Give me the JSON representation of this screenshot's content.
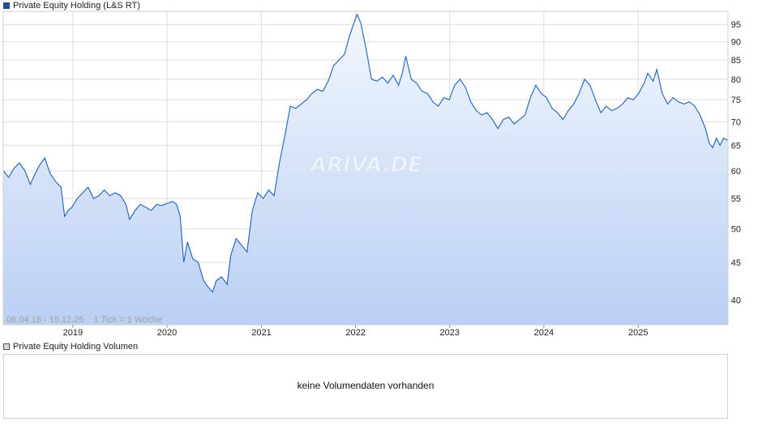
{
  "legend": {
    "price_label": "Private Equity Holding (L&S RT)",
    "volume_label": "Private Equity Holding Volumen"
  },
  "info_text": "06.04.18 - 15.12.25    1 Tick = 1 Woche",
  "watermark": "ARIVA.DE",
  "volume": {
    "message": "keine Volumendaten vorhanden"
  },
  "colors": {
    "line": "#1f5fbf",
    "fill_top": "#f3f7fd",
    "fill_bottom": "#b9d0f4",
    "grid": "#dddddd"
  },
  "chart_data": {
    "type": "area",
    "scale": "log",
    "ylim": [
      37,
      99
    ],
    "xlim": [
      "2018-04-06",
      "2025-12-15"
    ],
    "y_ticks": [
      40,
      45,
      50,
      55,
      60,
      65,
      70,
      75,
      80,
      85,
      90,
      95
    ],
    "x_ticks": [
      {
        "label": "2019",
        "date": "2019-01-01"
      },
      {
        "label": "2020",
        "date": "2020-01-01"
      },
      {
        "label": "2021",
        "date": "2021-01-01"
      },
      {
        "label": "2022",
        "date": "2022-01-01"
      },
      {
        "label": "2023",
        "date": "2023-01-01"
      },
      {
        "label": "2024",
        "date": "2024-01-01"
      },
      {
        "label": "2025",
        "date": "2025-01-01"
      }
    ],
    "grid": true,
    "series": [
      {
        "name": "Private Equity Holding (L&S RT)",
        "points": [
          [
            "2018-04-06",
            60.0
          ],
          [
            "2018-04-27",
            58.8
          ],
          [
            "2018-05-18",
            60.5
          ],
          [
            "2018-06-08",
            61.5
          ],
          [
            "2018-06-29",
            60.0
          ],
          [
            "2018-07-20",
            57.5
          ],
          [
            "2018-08-03",
            59.0
          ],
          [
            "2018-08-24",
            61.0
          ],
          [
            "2018-09-14",
            62.5
          ],
          [
            "2018-10-05",
            59.5
          ],
          [
            "2018-10-26",
            58.0
          ],
          [
            "2018-11-16",
            57.0
          ],
          [
            "2018-11-30",
            52.0
          ],
          [
            "2018-12-14",
            53.0
          ],
          [
            "2018-12-28",
            53.5
          ],
          [
            "2019-01-18",
            55.0
          ],
          [
            "2019-02-08",
            56.0
          ],
          [
            "2019-03-01",
            57.0
          ],
          [
            "2019-03-22",
            55.0
          ],
          [
            "2019-04-12",
            55.5
          ],
          [
            "2019-05-03",
            56.5
          ],
          [
            "2019-05-24",
            55.5
          ],
          [
            "2019-06-14",
            56.0
          ],
          [
            "2019-07-05",
            55.5
          ],
          [
            "2019-07-26",
            54.0
          ],
          [
            "2019-08-09",
            51.5
          ],
          [
            "2019-08-30",
            53.0
          ],
          [
            "2019-09-20",
            54.0
          ],
          [
            "2019-10-11",
            53.5
          ],
          [
            "2019-11-01",
            53.0
          ],
          [
            "2019-11-22",
            54.0
          ],
          [
            "2019-12-13",
            53.8
          ],
          [
            "2020-01-03",
            54.2
          ],
          [
            "2020-01-24",
            54.5
          ],
          [
            "2020-02-07",
            54.0
          ],
          [
            "2020-02-21",
            52.0
          ],
          [
            "2020-03-06",
            45.0
          ],
          [
            "2020-03-20",
            48.0
          ],
          [
            "2020-04-10",
            45.5
          ],
          [
            "2020-05-01",
            45.0
          ],
          [
            "2020-05-22",
            42.5
          ],
          [
            "2020-06-12",
            41.5
          ],
          [
            "2020-06-26",
            41.0
          ],
          [
            "2020-07-10",
            42.5
          ],
          [
            "2020-07-31",
            43.0
          ],
          [
            "2020-08-21",
            42.0
          ],
          [
            "2020-09-04",
            46.0
          ],
          [
            "2020-09-25",
            48.5
          ],
          [
            "2020-10-16",
            47.5
          ],
          [
            "2020-11-06",
            46.5
          ],
          [
            "2020-11-27",
            53.0
          ],
          [
            "2020-12-18",
            56.0
          ],
          [
            "2021-01-08",
            55.0
          ],
          [
            "2021-01-29",
            56.5
          ],
          [
            "2021-02-19",
            55.5
          ],
          [
            "2021-03-12",
            61.5
          ],
          [
            "2021-04-02",
            67.0
          ],
          [
            "2021-04-23",
            73.5
          ],
          [
            "2021-05-14",
            73.0
          ],
          [
            "2021-06-04",
            74.0
          ],
          [
            "2021-06-25",
            75.0
          ],
          [
            "2021-07-16",
            76.5
          ],
          [
            "2021-08-06",
            77.5
          ],
          [
            "2021-08-27",
            77.0
          ],
          [
            "2021-09-17",
            79.5
          ],
          [
            "2021-10-08",
            83.5
          ],
          [
            "2021-10-29",
            85.0
          ],
          [
            "2021-11-19",
            86.5
          ],
          [
            "2021-12-10",
            92.0
          ],
          [
            "2021-12-24",
            95.0
          ],
          [
            "2022-01-07",
            98.0
          ],
          [
            "2022-01-21",
            95.5
          ],
          [
            "2022-02-11",
            88.0
          ],
          [
            "2022-03-04",
            80.0
          ],
          [
            "2022-03-25",
            79.5
          ],
          [
            "2022-04-15",
            80.5
          ],
          [
            "2022-05-06",
            79.0
          ],
          [
            "2022-05-27",
            81.0
          ],
          [
            "2022-06-17",
            78.5
          ],
          [
            "2022-07-01",
            81.5
          ],
          [
            "2022-07-15",
            86.0
          ],
          [
            "2022-08-05",
            80.0
          ],
          [
            "2022-08-26",
            79.0
          ],
          [
            "2022-09-16",
            77.0
          ],
          [
            "2022-10-07",
            76.5
          ],
          [
            "2022-10-28",
            74.5
          ],
          [
            "2022-11-18",
            73.5
          ],
          [
            "2022-12-09",
            75.5
          ],
          [
            "2022-12-30",
            75.0
          ],
          [
            "2023-01-20",
            78.5
          ],
          [
            "2023-02-10",
            80.0
          ],
          [
            "2023-03-03",
            78.0
          ],
          [
            "2023-03-24",
            74.5
          ],
          [
            "2023-04-14",
            72.5
          ],
          [
            "2023-05-05",
            71.5
          ],
          [
            "2023-05-26",
            72.0
          ],
          [
            "2023-06-16",
            70.5
          ],
          [
            "2023-07-07",
            68.5
          ],
          [
            "2023-07-28",
            70.5
          ],
          [
            "2023-08-18",
            71.0
          ],
          [
            "2023-09-08",
            69.5
          ],
          [
            "2023-09-29",
            70.5
          ],
          [
            "2023-10-20",
            71.5
          ],
          [
            "2023-11-10",
            75.5
          ],
          [
            "2023-12-01",
            78.5
          ],
          [
            "2023-12-22",
            76.5
          ],
          [
            "2024-01-12",
            75.5
          ],
          [
            "2024-02-02",
            73.0
          ],
          [
            "2024-02-23",
            72.0
          ],
          [
            "2024-03-15",
            70.5
          ],
          [
            "2024-04-05",
            72.5
          ],
          [
            "2024-04-26",
            74.0
          ],
          [
            "2024-05-17",
            76.5
          ],
          [
            "2024-06-07",
            80.0
          ],
          [
            "2024-06-28",
            78.5
          ],
          [
            "2024-07-19",
            75.0
          ],
          [
            "2024-08-09",
            72.0
          ],
          [
            "2024-08-30",
            73.5
          ],
          [
            "2024-09-20",
            72.5
          ],
          [
            "2024-10-11",
            73.0
          ],
          [
            "2024-11-01",
            74.0
          ],
          [
            "2024-11-22",
            75.5
          ],
          [
            "2024-12-13",
            75.0
          ],
          [
            "2025-01-03",
            76.5
          ],
          [
            "2025-01-24",
            79.0
          ],
          [
            "2025-02-07",
            81.5
          ],
          [
            "2025-02-28",
            79.5
          ],
          [
            "2025-03-14",
            82.5
          ],
          [
            "2025-04-04",
            76.5
          ],
          [
            "2025-04-25",
            74.0
          ],
          [
            "2025-05-16",
            75.5
          ],
          [
            "2025-06-06",
            74.5
          ],
          [
            "2025-06-27",
            74.0
          ],
          [
            "2025-07-18",
            74.5
          ],
          [
            "2025-08-08",
            73.5
          ],
          [
            "2025-08-29",
            71.5
          ],
          [
            "2025-09-19",
            68.5
          ],
          [
            "2025-10-03",
            65.5
          ],
          [
            "2025-10-17",
            64.5
          ],
          [
            "2025-10-31",
            66.5
          ],
          [
            "2025-11-14",
            65.0
          ],
          [
            "2025-11-28",
            66.5
          ],
          [
            "2025-12-15",
            66.0
          ]
        ]
      }
    ]
  }
}
